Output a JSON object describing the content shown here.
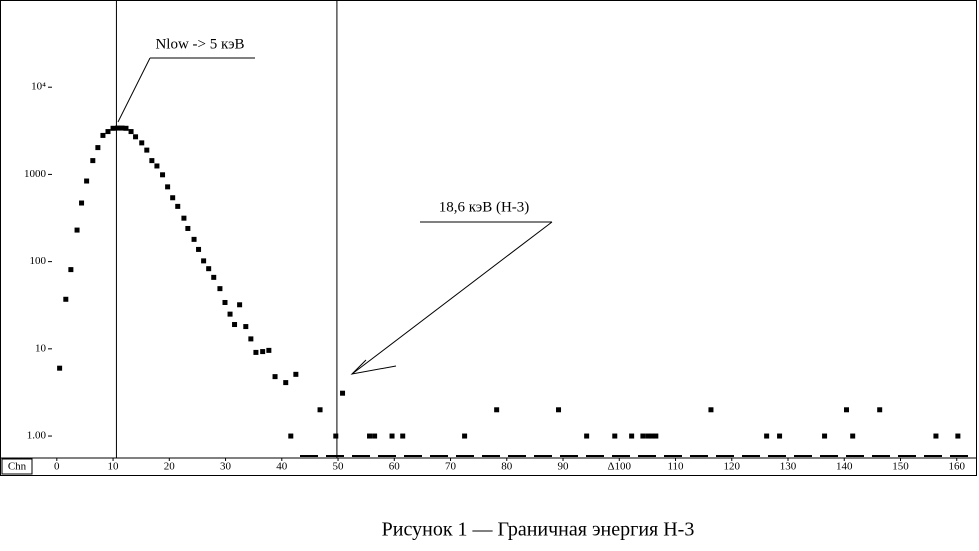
{
  "chart_data": {
    "type": "scatter",
    "annotations": [
      "Nlow -> 5 кэВ",
      "18,6 кэВ (H-3)"
    ],
    "x_axis_label": "Chn",
    "caption": "Рисунок 1 — Граничная энергия Н-3",
    "x": [
      0.5,
      1.6,
      2.5,
      3.6,
      4.4,
      5.3,
      6.4,
      7.3,
      8.2,
      9.1,
      10.0,
      10.8,
      11.6,
      12.3,
      13.2,
      14.0,
      15.1,
      16.0,
      16.9,
      17.8,
      18.8,
      19.7,
      20.6,
      21.5,
      22.6,
      23.3,
      24.4,
      25.2,
      26.1,
      27.0,
      27.9,
      29.0,
      29.9,
      30.8,
      31.6,
      32.5,
      33.6,
      34.5,
      35.4,
      36.6,
      37.7,
      38.8,
      40.7,
      41.6,
      42.5,
      46.8,
      49.6,
      50.8,
      55.6,
      56.5,
      59.6,
      61.5,
      72.5,
      78.2,
      89.2,
      94.2,
      99.2,
      102.2,
      104.2,
      105.1,
      105.8,
      106.5,
      116.3,
      126.2,
      128.5,
      136.5,
      140.4,
      141.5,
      146.3,
      156.3,
      160.2
    ],
    "values": [
      6,
      37,
      81,
      230,
      470,
      840,
      1440,
      2030,
      2800,
      3100,
      3380,
      3400,
      3400,
      3380,
      3100,
      2700,
      2300,
      1900,
      1440,
      1250,
      990,
      720,
      540,
      430,
      315,
      240,
      180,
      138,
      102,
      83,
      66,
      49,
      34,
      25,
      19,
      32,
      18,
      13,
      9.1,
      9.3,
      9.6,
      4.8,
      4.1,
      1,
      5.1,
      2,
      1,
      3.1,
      1,
      1,
      1,
      1,
      1,
      2,
      2,
      1,
      1,
      1,
      1,
      1,
      1,
      1,
      2,
      1,
      1,
      1,
      2,
      1,
      2,
      1,
      1
    ],
    "color": "#000000",
    "xlim": [
      -10.1,
      163.6
    ],
    "xticks": [
      0,
      10,
      20,
      30,
      40,
      50,
      60,
      70,
      80,
      90,
      {
        "value": 100,
        "label": "Δ100"
      },
      110,
      120,
      130,
      140,
      150,
      160
    ],
    "ylim": [
      0.56,
      100000
    ],
    "yticks": [
      {
        "value": 1,
        "label": "1.00"
      },
      10,
      100,
      1000,
      {
        "value": 10000,
        "label": "10⁴"
      }
    ],
    "log_y": true,
    "vlines": [
      10.6,
      49.8
    ],
    "grid": false
  }
}
